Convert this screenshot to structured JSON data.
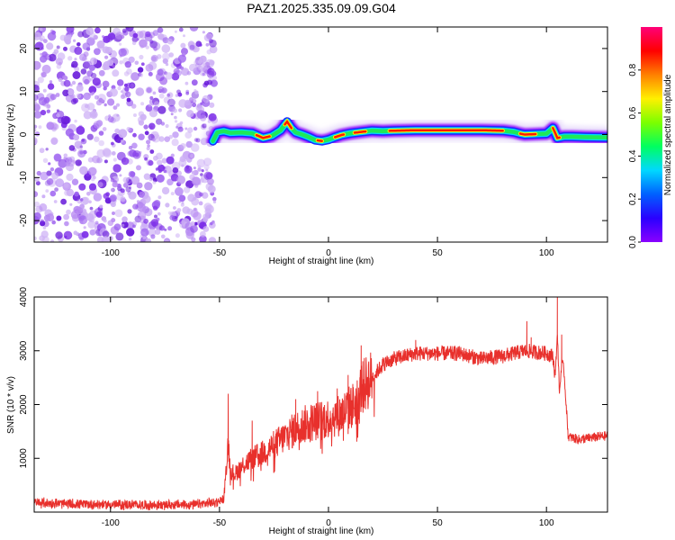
{
  "title": "PAZ1.2025.335.09.09.G04",
  "colors": {
    "snr_line": "#e8302c",
    "scatter": [
      "#cdb0f5",
      "#b98cf2",
      "#9b5ff0",
      "#7d2fe8",
      "#6414d9"
    ],
    "colormap": [
      "#8a00ff",
      "#2a00ff",
      "#0060ff",
      "#00d8ff",
      "#00ff60",
      "#7cff00",
      "#fff000",
      "#ff8000",
      "#ff0000",
      "#ff0078"
    ]
  },
  "chart_data": [
    {
      "type": "heatmap",
      "xlabel": "Height of straight line (km)",
      "ylabel": "Frequency (Hz)",
      "xlim": [
        -135,
        128
      ],
      "ylim": [
        -25,
        25
      ],
      "xticks": [
        -100,
        -50,
        0,
        50,
        100
      ],
      "yticks": [
        -20,
        -10,
        0,
        10,
        20
      ],
      "noise_region": [
        -135,
        -52
      ],
      "ridge": {
        "x": [
          -53,
          -51,
          -48,
          -45,
          -40,
          -35,
          -30,
          -26,
          -22,
          -19,
          -17,
          -15,
          -12,
          -9,
          -6,
          -3,
          0,
          3,
          6,
          10,
          15,
          20,
          25,
          30,
          40,
          50,
          60,
          70,
          80,
          85,
          88,
          90,
          95,
          100,
          103,
          105,
          108,
          112,
          118,
          128
        ],
        "freq": [
          -1.5,
          0.5,
          0.8,
          0.4,
          0.5,
          0.3,
          -0.8,
          -0.3,
          1.0,
          3.0,
          1.5,
          0.5,
          0.0,
          -0.6,
          -1.3,
          -1.5,
          -1.2,
          -0.6,
          -0.1,
          0.3,
          0.6,
          0.9,
          0.8,
          0.9,
          1.0,
          1.0,
          1.0,
          1.0,
          0.9,
          0.6,
          0.2,
          0.0,
          0.1,
          0.2,
          1.5,
          -0.8,
          -0.5,
          -0.5,
          -0.6,
          -0.7
        ]
      },
      "colorbar": {
        "label": "Normalized spectral amplitude",
        "ticks": [
          "0.0",
          "0.2",
          "0.4",
          "0.6",
          "0.8"
        ],
        "range": [
          0,
          1
        ]
      }
    },
    {
      "type": "line",
      "xlabel": "Height of straight line (km)",
      "ylabel": "SNR (10 * v/v)",
      "xlim": [
        -135,
        128
      ],
      "ylim": [
        0,
        4000
      ],
      "xticks": [
        -100,
        -50,
        0,
        50,
        100
      ],
      "yticks": [
        1000,
        2000,
        3000,
        4000
      ],
      "series": [
        {
          "name": "SNR",
          "x": [
            -135,
            -120,
            -100,
            -80,
            -60,
            -52,
            -48,
            -46,
            -45,
            -43,
            -40,
            -35,
            -30,
            -25,
            -20,
            -15,
            -10,
            -5,
            0,
            5,
            10,
            13,
            15,
            20,
            25,
            30,
            40,
            50,
            60,
            70,
            80,
            90,
            100,
            103,
            104,
            105,
            106,
            107,
            108,
            110,
            115,
            120,
            128
          ],
          "y": [
            180,
            150,
            140,
            130,
            140,
            180,
            250,
            1300,
            800,
            700,
            850,
            1000,
            1100,
            1250,
            1400,
            1550,
            1650,
            1700,
            1750,
            1800,
            1950,
            2050,
            2300,
            2500,
            2750,
            2850,
            2950,
            2950,
            2950,
            2850,
            2900,
            3000,
            2950,
            2900,
            2500,
            3300,
            2200,
            2800,
            2650,
            1400,
            1350,
            1380,
            1420
          ],
          "spikes": [
            [
              -46,
              2200
            ],
            [
              -35,
              1700
            ],
            [
              -15,
              2100
            ],
            [
              -5,
              2250
            ],
            [
              4,
              2300
            ],
            [
              9,
              2550
            ],
            [
              15,
              3100
            ],
            [
              40,
              3200
            ],
            [
              91,
              3550
            ],
            [
              93,
              3250
            ],
            [
              105,
              4000
            ],
            [
              107,
              3300
            ]
          ]
        }
      ]
    }
  ]
}
